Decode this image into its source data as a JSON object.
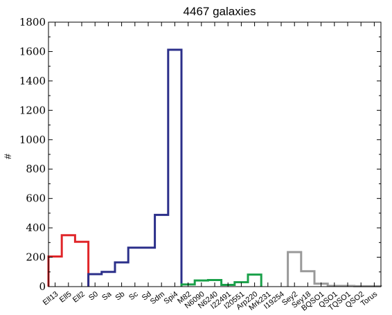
{
  "chart_data": {
    "type": "histogram-step",
    "title": "4467 galaxies",
    "ylabel": "#",
    "xlabel": "",
    "ylim": [
      0,
      1800
    ],
    "yticks": [
      0,
      200,
      400,
      600,
      800,
      1000,
      1200,
      1400,
      1600,
      1800
    ],
    "grid": false,
    "categories": [
      "Ell13",
      "Ell5",
      "Ell2",
      "S0",
      "Sa",
      "Sb",
      "Sc",
      "Sd",
      "Sdm",
      "Spi4",
      "M82",
      "N6090",
      "N6240",
      "I22491",
      "I20551",
      "Arp220",
      "Mrk231",
      "I19254",
      "Sey2",
      "Sey18",
      "BQSO1",
      "QSO1",
      "TQSO1",
      "QSO2",
      "Torus"
    ],
    "values": [
      205,
      350,
      305,
      85,
      100,
      165,
      265,
      265,
      488,
      1612,
      15,
      42,
      45,
      12,
      30,
      82,
      0,
      0,
      235,
      105,
      20,
      5,
      5,
      3,
      3
    ],
    "series": [
      {
        "name": "",
        "color": "#e0262a",
        "start": 0,
        "end": 2
      },
      {
        "name": "",
        "color": "#2b2f8a",
        "start": 3,
        "end": 9
      },
      {
        "name": "",
        "color": "#1aa049",
        "start": 10,
        "end": 15
      },
      {
        "name": "",
        "color": "#999999",
        "start": 18,
        "end": 24
      }
    ]
  }
}
